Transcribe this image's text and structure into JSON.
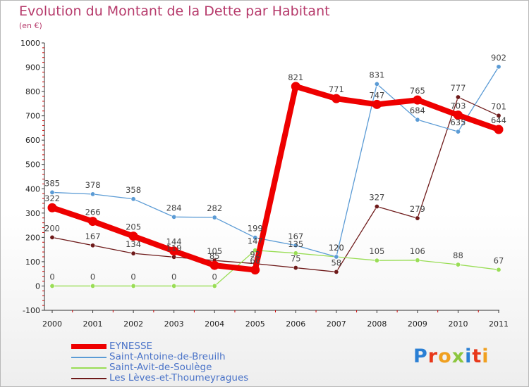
{
  "header": {
    "title": "Evolution du Montant de la Dette par Habitant",
    "unit": "(en €)"
  },
  "logo": {
    "text": "Proxiti"
  },
  "chart_data": {
    "type": "line",
    "title": "Evolution du Montant de la Dette par Habitant",
    "subtitle": "(en €)",
    "xlabel": "",
    "ylabel": "",
    "ylim": [
      -100,
      1000
    ],
    "yticks": [
      -100,
      0,
      100,
      200,
      300,
      400,
      500,
      600,
      700,
      800,
      900,
      1000
    ],
    "grid": false,
    "legend_position": "bottom-left",
    "x": [
      2000,
      2001,
      2002,
      2003,
      2004,
      2005,
      2006,
      2007,
      2008,
      2009,
      2010,
      2011
    ],
    "series": [
      {
        "name": "EYNESSE",
        "color": "#ee0000",
        "values": [
          322,
          266,
          205,
          144,
          85,
          66,
          821,
          771,
          747,
          765,
          703,
          644
        ],
        "labels": [
          "322",
          "266",
          "205",
          "144",
          "85",
          "66",
          "821",
          "771",
          "747",
          "765",
          "703",
          "644"
        ]
      },
      {
        "name": "Saint-Antoine-de-Breuilh",
        "color": "#5b9bd5",
        "values": [
          385,
          378,
          358,
          284,
          282,
          199,
          167,
          120,
          831,
          684,
          635,
          902
        ],
        "labels": [
          "385",
          "378",
          "358",
          "284",
          "282",
          "199",
          "167",
          "120",
          "831",
          "684",
          "635",
          "902"
        ]
      },
      {
        "name": "Saint-Avit-de-Soulège",
        "color": "#99dd55",
        "values": [
          0,
          0,
          0,
          0,
          0,
          147,
          135,
          120,
          105,
          106,
          88,
          67
        ],
        "labels": [
          "0",
          "0",
          "0",
          "0",
          "0",
          "147",
          "135",
          "120",
          "105",
          "106",
          "88",
          "67"
        ]
      },
      {
        "name": "Les Lèves-et-Thoumeyragues",
        "color": "#6e1a1a",
        "values": [
          200,
          167,
          134,
          119,
          105,
          92,
          75,
          58,
          327,
          279,
          777,
          701
        ],
        "labels": [
          "200",
          "167",
          "134",
          "119",
          "105",
          "92",
          "75",
          "58",
          "327",
          "279",
          "777",
          "701"
        ]
      }
    ]
  }
}
